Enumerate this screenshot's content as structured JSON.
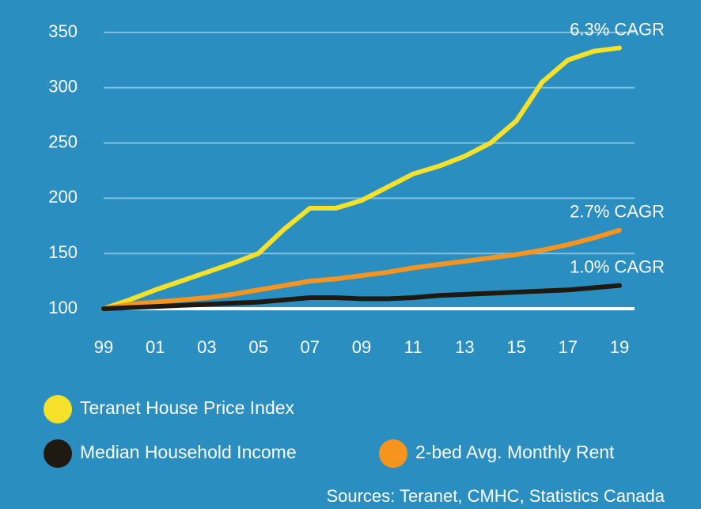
{
  "chart_data": {
    "type": "line",
    "categories": [
      "99",
      null,
      "01",
      null,
      "03",
      null,
      "05",
      null,
      "07",
      null,
      "09",
      null,
      "11",
      null,
      "13",
      null,
      "15",
      null,
      "17",
      null,
      "19"
    ],
    "series": [
      {
        "name": "Teranet House Price Index",
        "color": "#f5e12a",
        "annotation": "6.3% CAGR",
        "values": [
          100,
          108,
          117,
          125,
          133,
          141,
          150,
          172,
          191,
          191,
          198,
          210,
          222,
          229,
          238,
          250,
          270,
          305,
          325,
          333,
          336
        ]
      },
      {
        "name": "Median Household Income",
        "color": "#1e1a12",
        "annotation": "1.0% CAGR",
        "values": [
          100,
          101,
          102,
          103,
          104,
          105,
          106,
          108,
          110,
          110,
          109,
          109,
          110,
          112,
          113,
          114,
          115,
          116,
          117,
          119,
          121
        ]
      },
      {
        "name": "2-bed Avg. Monthly Rent",
        "color": "#f7941d",
        "annotation": "2.7% CAGR",
        "values": [
          100,
          104,
          106,
          108,
          110,
          113,
          117,
          121,
          125,
          127,
          130,
          133,
          137,
          140,
          143,
          146,
          149,
          153,
          158,
          164,
          171
        ]
      }
    ],
    "ylim": [
      100,
      350
    ],
    "yticks": [
      100,
      150,
      200,
      250,
      300,
      350
    ],
    "grid": true,
    "source": "Sources: Teranet, CMHC, Statistics Canada"
  }
}
